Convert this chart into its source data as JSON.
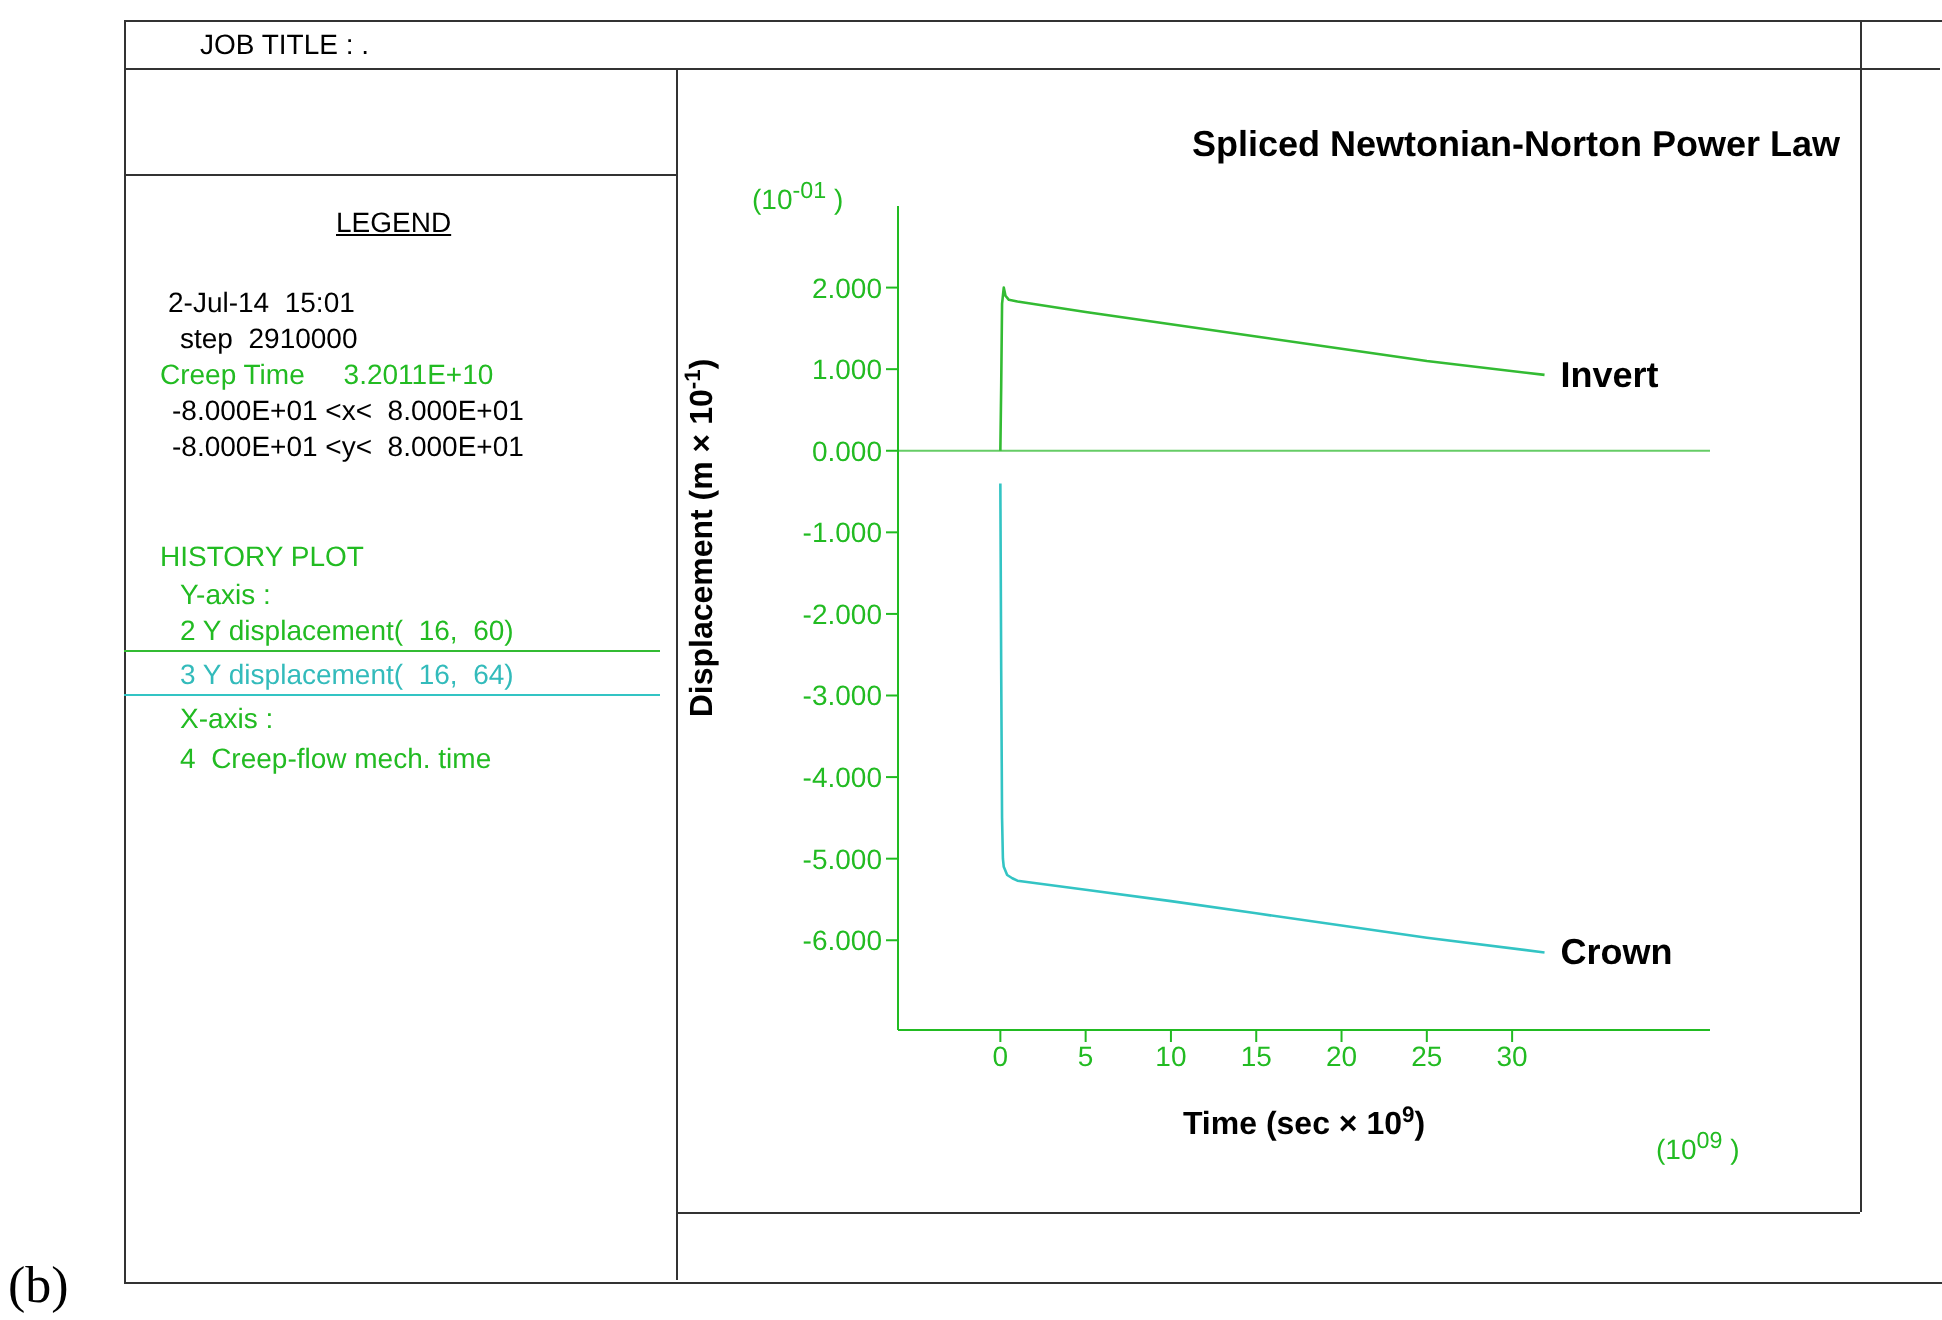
{
  "chart_data": {
    "type": "line",
    "title": "Spliced Newtonian-Norton Power Law",
    "xlabel": "Time (sec × 10$^{9}$)",
    "ylabel": "Displacement (m × 10$^{-1}$)",
    "xlim": [
      -6,
      41.6
    ],
    "xticks": [
      0,
      5,
      10,
      15,
      20,
      25,
      30
    ],
    "ylim": [
      -7.1,
      3
    ],
    "yticks": [
      {
        "value": 2,
        "label": "2.000"
      },
      {
        "value": 1,
        "label": "1.000"
      },
      {
        "value": 0,
        "label": "0.000"
      },
      {
        "value": -1,
        "label": "-1.000"
      },
      {
        "value": -2,
        "label": "-2.000"
      },
      {
        "value": -3,
        "label": "-3.000"
      },
      {
        "value": -4,
        "label": "-4.000"
      },
      {
        "value": -5,
        "label": "-5.000"
      },
      {
        "value": -6,
        "label": "-6.000"
      }
    ],
    "ref_lines": [
      {
        "axis": "y",
        "value": 0,
        "color": "#66cc66"
      }
    ],
    "series": [
      {
        "name": "Invert",
        "color": "#33bb33",
        "x": [
          0,
          0.05,
          0.1,
          0.2,
          0.3,
          0.5,
          1,
          5,
          10,
          15,
          20,
          25,
          31.9
        ],
        "values": [
          0,
          0.8,
          1.8,
          2.0,
          1.9,
          1.85,
          1.83,
          1.7,
          1.55,
          1.4,
          1.25,
          1.1,
          0.93
        ]
      },
      {
        "name": "Crown",
        "color": "#33c4c4",
        "x": [
          0,
          0.05,
          0.1,
          0.15,
          0.2,
          0.4,
          0.7,
          1,
          5,
          10,
          15,
          20,
          25,
          31.9
        ],
        "values": [
          -0.4,
          -2.7,
          -4.5,
          -5.0,
          -5.1,
          -5.2,
          -5.24,
          -5.27,
          -5.38,
          -5.52,
          -5.67,
          -5.82,
          -5.97,
          -6.15
        ]
      }
    ],
    "annotations": [
      "JOB TITLE : .",
      "LEGEND",
      "2-Jul-14  15:01",
      "step  2910000",
      "Creep Time     3.2011E+10",
      "-8.000E+01 <x<  8.000E+01",
      "-8.000E+01 <y<  8.000E+01",
      "HISTORY PLOT",
      "Y-axis :",
      "2 Y displacement(  16,  60)",
      "3 Y displacement(  16,  64)",
      "X-axis :",
      "4  Creep-flow mech. time",
      "(10$^{-01}$ )",
      "(10$^{09}$ )",
      "(b)"
    ]
  }
}
